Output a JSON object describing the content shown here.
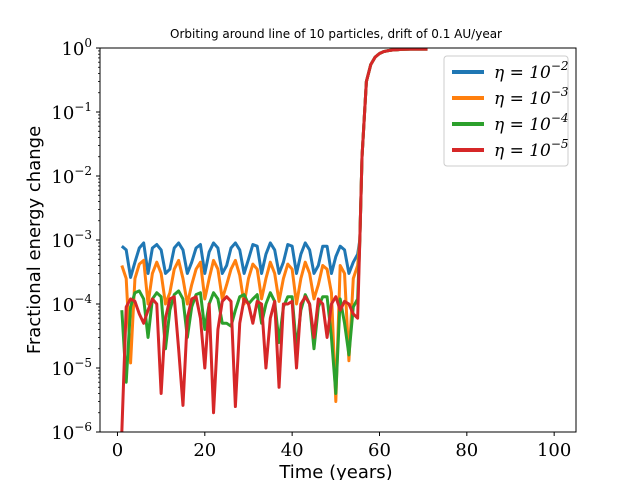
{
  "chart_data": {
    "type": "line",
    "title": "Orbiting around line of 10 particles, drift of 0.1 AU/year",
    "xlabel": "Time (years)",
    "ylabel": "Fractional energy change",
    "xlim": [
      -4,
      105
    ],
    "ylim": [
      1e-06,
      1
    ],
    "yscale": "log",
    "xticks": [
      0,
      20,
      40,
      60,
      80,
      100
    ],
    "xtick_labels": [
      "0",
      "20",
      "40",
      "60",
      "80",
      "100"
    ],
    "yticks": [
      1e-06,
      1e-05,
      0.0001,
      0.001,
      0.01,
      0.1,
      1
    ],
    "ytick_labels": [
      {
        "base": "10",
        "exp": "−6"
      },
      {
        "base": "10",
        "exp": "−5"
      },
      {
        "base": "10",
        "exp": "−4"
      },
      {
        "base": "10",
        "exp": "−3"
      },
      {
        "base": "10",
        "exp": "−2"
      },
      {
        "base": "10",
        "exp": "−1"
      },
      {
        "base": "10",
        "exp": "0"
      }
    ],
    "grid": false,
    "legend_position": "top-right",
    "series": [
      {
        "name": "η = 10−2",
        "label_base": "η = 10",
        "label_exp": "−2",
        "color": "#1f77b4",
        "x": [
          1,
          2,
          3,
          4,
          5,
          6,
          7,
          8,
          9,
          10,
          11,
          12,
          13,
          14,
          15,
          16,
          17,
          18,
          19,
          20,
          21,
          22,
          23,
          24,
          25,
          26,
          27,
          28,
          29,
          30,
          31,
          32,
          33,
          34,
          35,
          36,
          37,
          38,
          39,
          40,
          41,
          42,
          43,
          44,
          45,
          46,
          47,
          48,
          49,
          50,
          51,
          52,
          53,
          54,
          55,
          55.5,
          56,
          57,
          58,
          59,
          60,
          61,
          62,
          63,
          64,
          65,
          66,
          67,
          68,
          69,
          70,
          71
        ],
        "y": [
          0.0008,
          0.0007,
          0.00026,
          0.00045,
          0.00075,
          0.0009,
          0.0003,
          0.00075,
          0.00085,
          0.0007,
          0.0003,
          0.00035,
          0.00075,
          0.0009,
          0.0007,
          0.0003,
          0.00045,
          0.00075,
          0.00085,
          0.0003,
          0.00065,
          0.0009,
          0.00075,
          0.0003,
          0.0004,
          0.00075,
          0.0009,
          0.0007,
          0.0003,
          0.0005,
          0.00085,
          0.0008,
          0.0003,
          0.0006,
          0.0009,
          0.0007,
          0.0003,
          0.00045,
          0.00085,
          0.0008,
          0.0003,
          0.0006,
          0.0009,
          0.0007,
          0.0003,
          0.0004,
          0.0008,
          0.0008,
          0.0003,
          0.00055,
          0.0008,
          0.0007,
          0.0003,
          0.00045,
          0.0006,
          0.001,
          0.02,
          0.3,
          0.55,
          0.72,
          0.82,
          0.88,
          0.91,
          0.93,
          0.94,
          0.95,
          0.955,
          0.96,
          0.96,
          0.96,
          0.96,
          0.96
        ]
      },
      {
        "name": "η = 10−3",
        "label_base": "η = 10",
        "label_exp": "−3",
        "color": "#ff7f0e",
        "x": [
          1,
          2,
          3,
          4,
          5,
          6,
          7,
          8,
          9,
          10,
          11,
          12,
          13,
          14,
          15,
          16,
          17,
          18,
          19,
          20,
          21,
          22,
          23,
          24,
          25,
          26,
          27,
          28,
          29,
          30,
          31,
          32,
          33,
          34,
          35,
          36,
          37,
          38,
          39,
          40,
          41,
          42,
          43,
          44,
          45,
          46,
          47,
          48,
          49,
          50,
          51,
          52,
          53,
          54,
          55,
          55.5,
          56,
          57,
          58,
          59,
          60,
          61,
          62,
          63,
          64,
          65,
          66,
          67,
          68,
          69,
          70,
          71
        ],
        "y": [
          0.0004,
          0.00025,
          1.2e-05,
          0.00025,
          0.00042,
          0.00048,
          0.0001,
          0.0003,
          0.00045,
          0.0003,
          0.0001,
          0.00015,
          0.00035,
          0.00048,
          0.00025,
          0.0001,
          0.0002,
          0.00035,
          0.00045,
          0.00012,
          0.00025,
          0.00048,
          0.00035,
          0.00012,
          0.0002,
          0.00035,
          0.00048,
          0.00028,
          0.0001,
          0.00025,
          0.00042,
          0.00035,
          0.00012,
          0.00025,
          0.00045,
          0.0003,
          0.00011,
          0.00025,
          0.00042,
          0.00035,
          0.0001,
          0.00025,
          0.00045,
          0.0003,
          0.00012,
          0.0002,
          0.0004,
          0.00035,
          0.00015,
          3e-06,
          0.0004,
          0.0003,
          1.3e-05,
          0.00025,
          0.0004,
          0.001,
          0.02,
          0.3,
          0.55,
          0.72,
          0.82,
          0.88,
          0.91,
          0.93,
          0.94,
          0.95,
          0.955,
          0.96,
          0.96,
          0.96,
          0.96,
          0.96
        ]
      },
      {
        "name": "η = 10−4",
        "label_base": "η = 10",
        "label_exp": "−4",
        "color": "#2ca02c",
        "x": [
          1,
          2,
          3,
          4,
          5,
          6,
          7,
          8,
          9,
          10,
          11,
          12,
          13,
          14,
          15,
          16,
          17,
          18,
          19,
          20,
          21,
          22,
          23,
          24,
          25,
          26,
          27,
          28,
          29,
          30,
          31,
          32,
          33,
          34,
          35,
          36,
          37,
          38,
          39,
          40,
          41,
          42,
          43,
          44,
          45,
          46,
          47,
          48,
          49,
          50,
          51,
          52,
          53,
          54,
          55,
          55.5,
          56,
          57,
          58,
          59,
          60,
          61,
          62,
          63,
          64,
          65,
          66,
          67,
          68,
          69,
          70,
          71
        ],
        "y": [
          8e-05,
          6e-06,
          9e-05,
          0.00015,
          0.00016,
          0.00012,
          3e-05,
          0.00012,
          0.00015,
          0.00013,
          2e-05,
          8e-05,
          0.00014,
          0.00016,
          0.00012,
          3e-05,
          9e-05,
          0.00014,
          0.00015,
          4e-05,
          0.0001,
          0.00015,
          0.00012,
          5e-05,
          5e-05,
          4.5e-05,
          8e-05,
          0.00013,
          0.00014,
          0.0001,
          0.00012,
          0.00014,
          5e-05,
          0.0001,
          0.00015,
          0.00011,
          2.5e-05,
          9e-05,
          0.00013,
          0.00013,
          2e-05,
          8e-05,
          0.00014,
          0.0001,
          2e-05,
          9e-05,
          0.00013,
          0.00013,
          3e-05,
          4e-06,
          0.00012,
          5e-05,
          1.6e-05,
          9e-05,
          0.00012,
          0.001,
          0.02,
          0.3,
          0.55,
          0.72,
          0.82,
          0.88,
          0.91,
          0.93,
          0.94,
          0.95,
          0.955,
          0.96,
          0.96,
          0.96,
          0.96,
          0.96
        ]
      },
      {
        "name": "η = 10−5",
        "label_base": "η = 10",
        "label_exp": "−5",
        "color": "#d62728",
        "x": [
          1,
          2,
          3,
          4,
          5,
          6,
          7,
          8,
          9,
          10,
          11,
          12,
          13,
          14,
          15,
          16,
          17,
          18,
          19,
          20,
          21,
          22,
          23,
          24,
          25,
          26,
          27,
          28,
          29,
          30,
          31,
          32,
          33,
          34,
          35,
          36,
          37,
          38,
          39,
          40,
          41,
          42,
          43,
          44,
          45,
          46,
          47,
          48,
          49,
          50,
          51,
          52,
          53,
          54,
          55,
          55.5,
          56,
          57,
          58,
          59,
          60,
          61,
          62,
          63,
          64,
          65,
          66,
          67,
          68,
          69,
          70,
          71
        ],
        "y": [
          1e-06,
          9e-05,
          0.00012,
          0.00011,
          7e-05,
          5e-05,
          8e-05,
          0.00012,
          0.0001,
          4e-06,
          6e-05,
          0.00012,
          0.00013,
          2e-05,
          2.6e-06,
          6e-05,
          0.00012,
          0.00013,
          6e-05,
          1e-05,
          0.0001,
          2e-06,
          4e-05,
          0.00011,
          0.00013,
          0.00011,
          2.5e-06,
          5e-05,
          0.00012,
          0.0001,
          5e-05,
          0.00011,
          0.0001,
          1e-05,
          6e-05,
          0.00011,
          5e-06,
          0.0001,
          0.0001,
          0.00011,
          1e-05,
          0.0001,
          0.00013,
          0.0001,
          3e-05,
          0.00012,
          0.0001,
          3e-05,
          0.0001,
          0.00013,
          8e-05,
          0.00011,
          0.0001,
          7e-05,
          6e-05,
          0.001,
          0.02,
          0.3,
          0.55,
          0.72,
          0.82,
          0.88,
          0.91,
          0.93,
          0.94,
          0.95,
          0.955,
          0.96,
          0.96,
          0.96,
          0.96,
          0.96
        ]
      }
    ]
  }
}
